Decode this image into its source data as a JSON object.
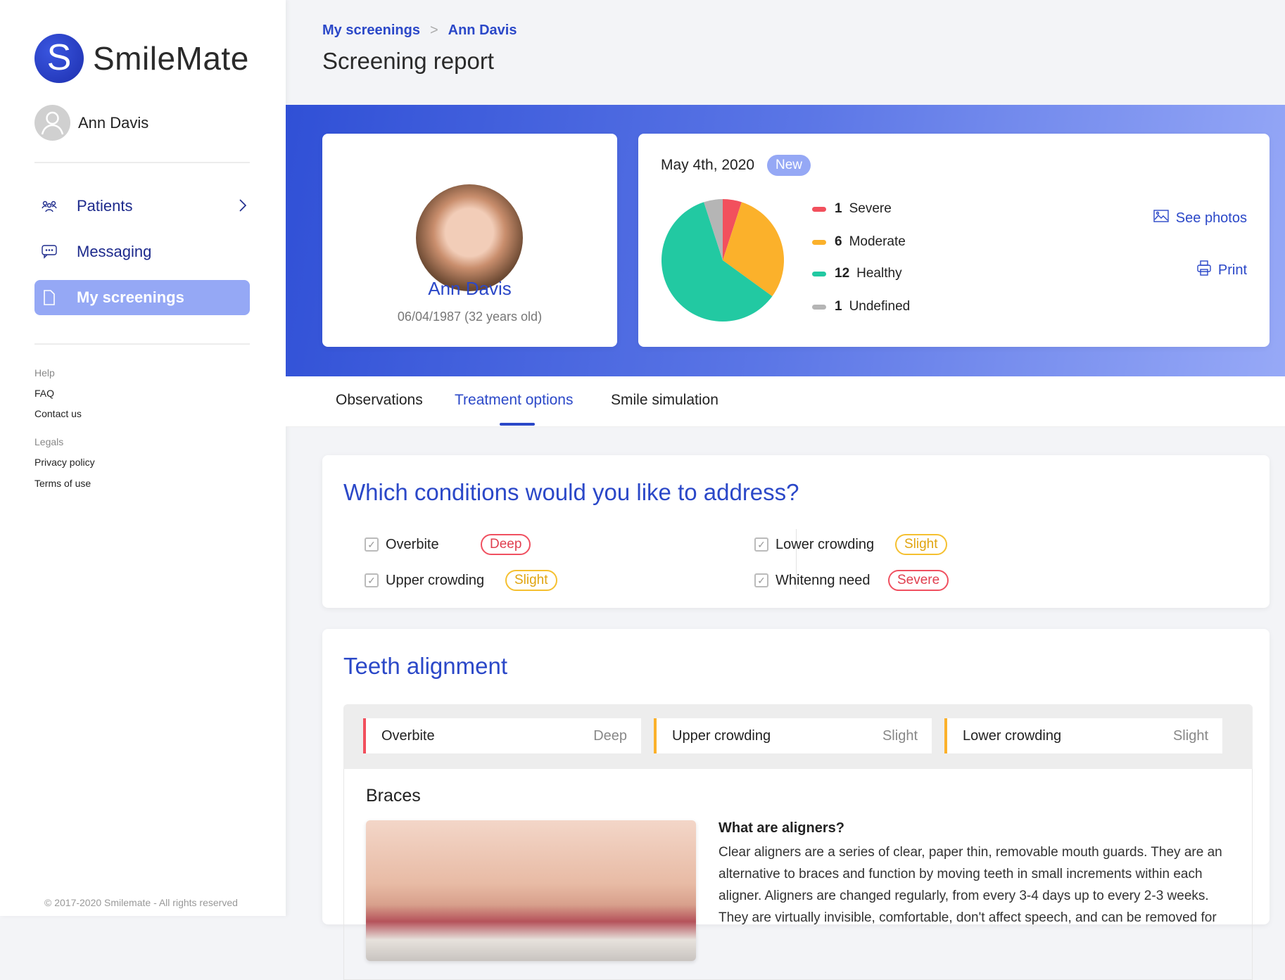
{
  "app": {
    "brand": "SmileMate",
    "user": "Ann Davis"
  },
  "sidebar": {
    "items": [
      {
        "label": "Patients",
        "icon": "patients-icon"
      },
      {
        "label": "Messaging",
        "icon": "chat-icon"
      },
      {
        "label": "My screenings",
        "icon": "document-icon",
        "active": true
      }
    ],
    "help": {
      "heading": "Help",
      "links": [
        "FAQ",
        "Contact us"
      ]
    },
    "legals": {
      "heading": "Legals",
      "links": [
        "Privacy policy",
        "Terms of use"
      ]
    },
    "footer": "© 2017-2020 Smilemate - All rights reserved"
  },
  "header": {
    "breadcrumb": [
      "My screenings",
      "Ann Davis"
    ],
    "title": "Screening report"
  },
  "patient": {
    "name": "Ann Davis",
    "dob": "06/04/1987 (32 years old)"
  },
  "summary": {
    "date": "May 4th, 2020",
    "status": "New",
    "see_photos": "See photos",
    "print": "Print"
  },
  "chart_data": {
    "type": "pie",
    "categories": [
      "Severe",
      "Moderate",
      "Healthy",
      "Undefined"
    ],
    "values": [
      1,
      6,
      12,
      1
    ],
    "colors": [
      "#f2505d",
      "#fbb12b",
      "#22c9a2",
      "#b5b5b5"
    ]
  },
  "tabs": [
    {
      "label": "Observations"
    },
    {
      "label": "Treatment options",
      "active": true
    },
    {
      "label": "Smile simulation"
    }
  ],
  "conditions": {
    "title": "Which conditions would you like to address?",
    "items": [
      {
        "label": "Overbite",
        "level": "Deep",
        "color": "red"
      },
      {
        "label": "Upper crowding",
        "level": "Slight",
        "color": "yellow"
      },
      {
        "label": "Lower crowding",
        "level": "Slight",
        "color": "yellow"
      },
      {
        "label": "Whitenng need",
        "level": "Severe",
        "color": "red"
      }
    ]
  },
  "alignment": {
    "title": "Teeth alignment",
    "items": [
      {
        "label": "Overbite",
        "level": "Deep",
        "color": "#f2505d"
      },
      {
        "label": "Upper crowding",
        "level": "Slight",
        "color": "#fbb12b"
      },
      {
        "label": "Lower crowding",
        "level": "Slight",
        "color": "#fbb12b"
      }
    ],
    "option": "Braces",
    "question": "What are aligners?",
    "body": "Clear aligners are a series of clear, paper thin, removable mouth guards. They are an alternative to braces and function by moving teeth in small increments within each aligner. Aligners are changed regularly, from every 3-4 days up to every 2-3 weeks. They are virtually invisible, comfortable, don't affect speech, and can be removed for"
  }
}
